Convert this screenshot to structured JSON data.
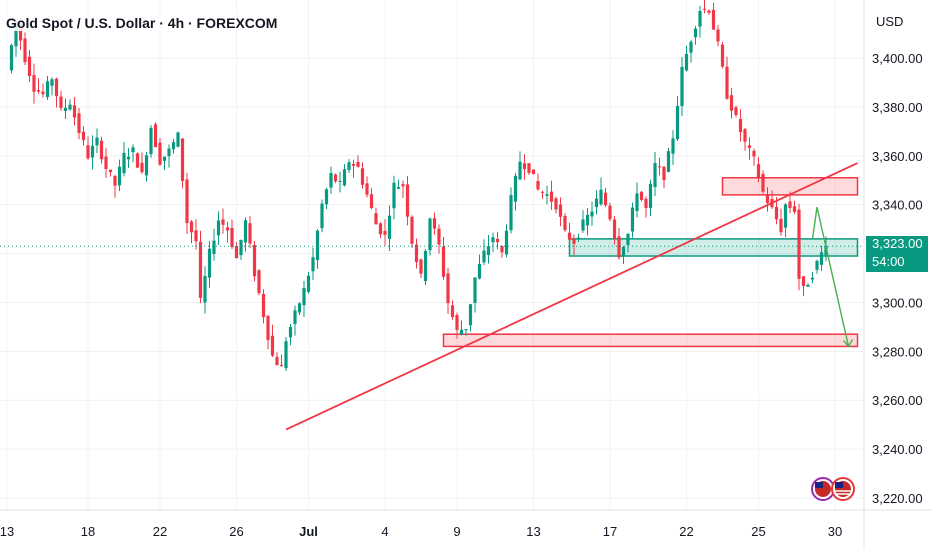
{
  "header": {
    "title": "Gold Spot / U.S. Dollar · 4h · FOREXCOM",
    "currency": "USD"
  },
  "price": {
    "current": "3,323.00",
    "countdown": "54:00"
  },
  "colors": {
    "up": "#089981",
    "down": "#f23645",
    "line": "#f23645",
    "green_zone": "#4caf7e",
    "arrow": "#4caf50"
  },
  "chart_data": {
    "type": "candlestick",
    "symbol": "Gold Spot / U.S. Dollar",
    "timeframe": "4h",
    "exchange": "FOREXCOM",
    "ylim": [
      3215,
      3435
    ],
    "y_ticks": [
      3220,
      3240,
      3260,
      3280,
      3300,
      3320,
      3340,
      3360,
      3380,
      3400
    ],
    "y_tick_labels": [
      "3,220.00",
      "3,240.00",
      "3,260.00",
      "3,280.00",
      "3,300.00",
      "3,320.00",
      "3,340.00",
      "3,360.00",
      "3,380.00",
      "3,400.00"
    ],
    "x_ticks": [
      {
        "label": "13",
        "bar": 0
      },
      {
        "label": "18",
        "bar": 18
      },
      {
        "label": "22",
        "bar": 34
      },
      {
        "label": "26",
        "bar": 51
      },
      {
        "label": "Jul",
        "bar": 67,
        "bold": true
      },
      {
        "label": "4",
        "bar": 84
      },
      {
        "label": "9",
        "bar": 100
      },
      {
        "label": "13",
        "bar": 117
      },
      {
        "label": "17",
        "bar": 134
      },
      {
        "label": "22",
        "bar": 151
      },
      {
        "label": "25",
        "bar": 167
      },
      {
        "label": "30",
        "bar": 184
      }
    ],
    "anchors": [
      [
        0,
        3395
      ],
      [
        2,
        3415
      ],
      [
        4,
        3400
      ],
      [
        6,
        3388
      ],
      [
        8,
        3385
      ],
      [
        10,
        3392
      ],
      [
        12,
        3378
      ],
      [
        14,
        3382
      ],
      [
        16,
        3370
      ],
      [
        18,
        3360
      ],
      [
        20,
        3366
      ],
      [
        22,
        3355
      ],
      [
        24,
        3348
      ],
      [
        26,
        3360
      ],
      [
        28,
        3362
      ],
      [
        30,
        3352
      ],
      [
        32,
        3372
      ],
      [
        34,
        3358
      ],
      [
        36,
        3362
      ],
      [
        38,
        3368
      ],
      [
        40,
        3333
      ],
      [
        42,
        3325
      ],
      [
        43,
        3300
      ],
      [
        45,
        3320
      ],
      [
        47,
        3334
      ],
      [
        49,
        3330
      ],
      [
        51,
        3318
      ],
      [
        53,
        3333
      ],
      [
        55,
        3312
      ],
      [
        57,
        3295
      ],
      [
        59,
        3278
      ],
      [
        61,
        3273
      ],
      [
        62,
        3285
      ],
      [
        64,
        3295
      ],
      [
        66,
        3305
      ],
      [
        68,
        3318
      ],
      [
        70,
        3340
      ],
      [
        72,
        3352
      ],
      [
        74,
        3348
      ],
      [
        76,
        3358
      ],
      [
        78,
        3355
      ],
      [
        80,
        3344
      ],
      [
        82,
        3332
      ],
      [
        84,
        3327
      ],
      [
        86,
        3348
      ],
      [
        88,
        3348
      ],
      [
        90,
        3325
      ],
      [
        92,
        3310
      ],
      [
        94,
        3335
      ],
      [
        96,
        3323
      ],
      [
        98,
        3300
      ],
      [
        100,
        3288
      ],
      [
        102,
        3290
      ],
      [
        104,
        3310
      ],
      [
        106,
        3320
      ],
      [
        108,
        3327
      ],
      [
        110,
        3320
      ],
      [
        112,
        3342
      ],
      [
        114,
        3358
      ],
      [
        116,
        3355
      ],
      [
        118,
        3346
      ],
      [
        120,
        3344
      ],
      [
        122,
        3340
      ],
      [
        124,
        3328
      ],
      [
        126,
        3325
      ],
      [
        128,
        3332
      ],
      [
        130,
        3338
      ],
      [
        132,
        3345
      ],
      [
        134,
        3335
      ],
      [
        136,
        3320
      ],
      [
        138,
        3328
      ],
      [
        140,
        3346
      ],
      [
        142,
        3338
      ],
      [
        144,
        3356
      ],
      [
        146,
        3352
      ],
      [
        148,
        3368
      ],
      [
        150,
        3395
      ],
      [
        152,
        3408
      ],
      [
        154,
        3420
      ],
      [
        156,
        3420
      ],
      [
        158,
        3405
      ],
      [
        160,
        3385
      ],
      [
        162,
        3375
      ],
      [
        164,
        3365
      ],
      [
        166,
        3358
      ],
      [
        168,
        3345
      ],
      [
        170,
        3338
      ],
      [
        172,
        3330
      ],
      [
        173,
        3340
      ],
      [
        175,
        3338
      ],
      [
        176,
        3310
      ],
      [
        177,
        3305
      ],
      [
        179,
        3312
      ],
      [
        181,
        3320
      ],
      [
        182,
        3325
      ]
    ],
    "annotations": {
      "trendline": {
        "from": {
          "bar": 62,
          "price": 3248
        },
        "to": {
          "bar": 189,
          "price": 3357
        },
        "color": "#f23645"
      },
      "resistance_zone": {
        "from_bar": 159,
        "to_bar": 189,
        "top": 3351,
        "bottom": 3344,
        "color": "#f23645"
      },
      "green_zone": {
        "from_bar": 125,
        "to_bar": 189,
        "top": 3326,
        "bottom": 3319,
        "color": "#089981"
      },
      "support_zone": {
        "from_bar": 97,
        "to_bar": 189,
        "top": 3287,
        "bottom": 3282,
        "color": "#f23645"
      },
      "projection_arrow": {
        "points": [
          {
            "bar": 179,
            "price": 3326
          },
          {
            "bar": 180,
            "price": 3339
          },
          {
            "bar": 187,
            "price": 3282
          }
        ],
        "color": "#4caf50"
      }
    },
    "last_price": 3323.0
  }
}
